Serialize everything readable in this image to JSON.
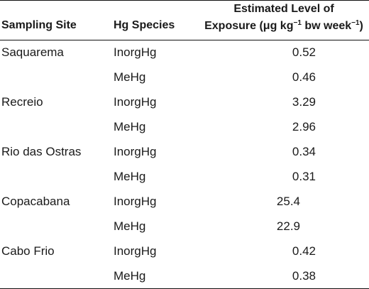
{
  "table": {
    "headers": {
      "site": "Sampling Site",
      "species": "Hg Species",
      "exposure_line1": "Estimated Level of",
      "exposure_line2_pre": "Exposure (μg kg",
      "exposure_sup1": "−1",
      "exposure_line2_mid": " bw week",
      "exposure_sup2": "−1",
      "exposure_line2_post": ")"
    },
    "rows": [
      {
        "site": "Saquarema",
        "species": "InorgHg",
        "value": "0.52"
      },
      {
        "site": "",
        "species": "MeHg",
        "value": "0.46"
      },
      {
        "site": "Recreio",
        "species": "InorgHg",
        "value": "3.29"
      },
      {
        "site": "",
        "species": "MeHg",
        "value": "2.96"
      },
      {
        "site": "Rio das Ostras",
        "species": "InorgHg",
        "value": "0.34"
      },
      {
        "site": "",
        "species": "MeHg",
        "value": "0.31"
      },
      {
        "site": "Copacabana",
        "species": "InorgHg",
        "value": "25.4"
      },
      {
        "site": "",
        "species": "MeHg",
        "value": "22.9"
      },
      {
        "site": "Cabo Frio",
        "species": "InorgHg",
        "value": "0.42"
      },
      {
        "site": "",
        "species": "MeHg",
        "value": "0.38"
      }
    ]
  }
}
